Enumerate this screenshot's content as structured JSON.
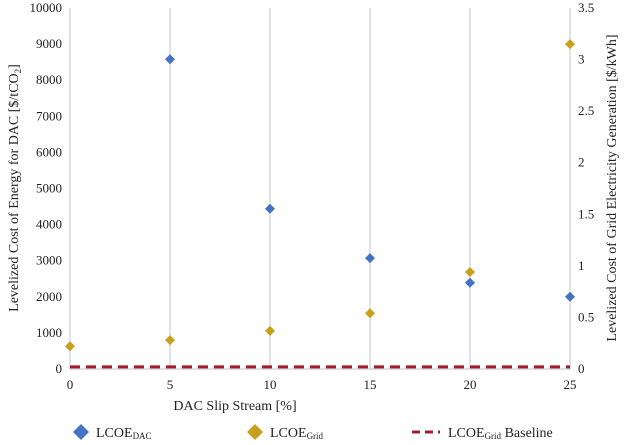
{
  "chart_data": {
    "type": "scatter",
    "xlabel": "DAC Slip Stream [%]",
    "ylabel_left": "Levelized Cost of Energy for DAC [$/tCO",
    "ylabel_left_sub": "2",
    "ylabel_left_end": "]",
    "ylabel_right": "Levelized Cost of Grid Electricity Generation [$/kWh]",
    "xlim": [
      0,
      25
    ],
    "ylim_left": [
      0,
      10000
    ],
    "ylim_right": [
      0,
      3.5
    ],
    "x_ticks": [
      0,
      5,
      10,
      15,
      20,
      25
    ],
    "y_left_ticks": [
      0,
      1000,
      2000,
      3000,
      4000,
      5000,
      6000,
      7000,
      8000,
      9000,
      10000
    ],
    "y_right_ticks": [
      "0",
      "0.5",
      "1",
      "1.5",
      "2",
      "2.5",
      "3",
      "3.5"
    ],
    "y_right_tick_values": [
      0,
      0.5,
      1,
      1.5,
      2,
      2.5,
      3,
      3.5
    ],
    "grid": "vertical",
    "legend_position": "bottom",
    "series": [
      {
        "name": "LCOE",
        "name_sub": "DAC",
        "axis": "left",
        "marker": "diamond",
        "color": "#4472C4",
        "points": [
          [
            5,
            8580
          ],
          [
            10,
            4440
          ],
          [
            15,
            3070
          ],
          [
            20,
            2390
          ],
          [
            25,
            2000
          ]
        ]
      },
      {
        "name": "LCOE",
        "name_sub": "Grid",
        "axis": "right",
        "marker": "diamond",
        "color": "#C9A01B",
        "points": [
          [
            0,
            0.22
          ],
          [
            5,
            0.28
          ],
          [
            10,
            0.37
          ],
          [
            15,
            0.54
          ],
          [
            20,
            0.94
          ],
          [
            25,
            3.15
          ]
        ]
      },
      {
        "name": "LCOE",
        "name_sub": "Grid",
        "name_suffix": " Baseline",
        "axis": "right",
        "marker": "dashed-line",
        "color": "#A01C2E",
        "value": 0.02
      }
    ]
  }
}
